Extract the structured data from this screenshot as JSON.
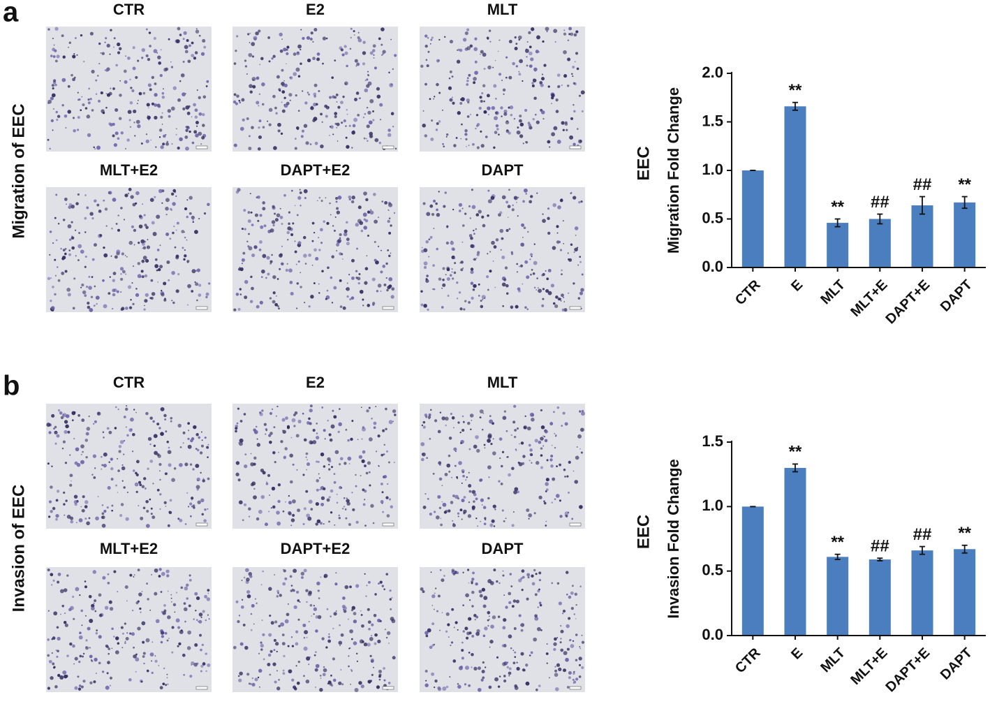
{
  "panels": [
    {
      "label": "a",
      "side_title": "Migration of EEC",
      "images": [
        "CTR",
        "E2",
        "MLT",
        "MLT+E2",
        "DAPT+E2",
        "DAPT"
      ]
    },
    {
      "label": "b",
      "side_title": "Invasion of EEC",
      "images": [
        "CTR",
        "E2",
        "MLT",
        "MLT+E2",
        "DAPT+E2",
        "DAPT"
      ]
    }
  ],
  "chart_data": [
    {
      "type": "bar",
      "y_title": "EEC",
      "y_label": "Migration Fold Change",
      "categories": [
        "CTR",
        "E",
        "MLT",
        "MLT+E",
        "DAPT+E",
        "DAPT"
      ],
      "values": [
        1.0,
        1.66,
        0.46,
        0.5,
        0.64,
        0.67
      ],
      "errors": [
        0,
        0.04,
        0.04,
        0.05,
        0.09,
        0.06
      ],
      "annotations": [
        null,
        "**",
        "**",
        "##",
        "##",
        "**"
      ],
      "color": "#4a7ebf",
      "ylim": [
        0,
        2.0
      ],
      "yticks": [
        {
          "value": 0,
          "label": "0.0"
        },
        {
          "value": 0.5,
          "label": "0.5"
        },
        {
          "value": 1.0,
          "label": "1.0"
        },
        {
          "value": 1.5,
          "label": "1.5"
        },
        {
          "value": 2.0,
          "label": "2.0"
        }
      ]
    },
    {
      "type": "bar",
      "y_title": "EEC",
      "y_label": "Invasion Fold Change",
      "categories": [
        "CTR",
        "E",
        "MLT",
        "MLT+E",
        "DAPT+E",
        "DAPT"
      ],
      "values": [
        1.0,
        1.3,
        0.61,
        0.59,
        0.66,
        0.67
      ],
      "errors": [
        0,
        0.03,
        0.02,
        0.01,
        0.03,
        0.03
      ],
      "annotations": [
        null,
        "**",
        "**",
        "##",
        "##",
        "**"
      ],
      "color": "#4a7ebf",
      "ylim": [
        0,
        1.5
      ],
      "yticks": [
        {
          "value": 0,
          "label": "0.0"
        },
        {
          "value": 0.5,
          "label": "0.5"
        },
        {
          "value": 1.0,
          "label": "1.0"
        },
        {
          "value": 1.5,
          "label": "1.5"
        }
      ]
    }
  ]
}
